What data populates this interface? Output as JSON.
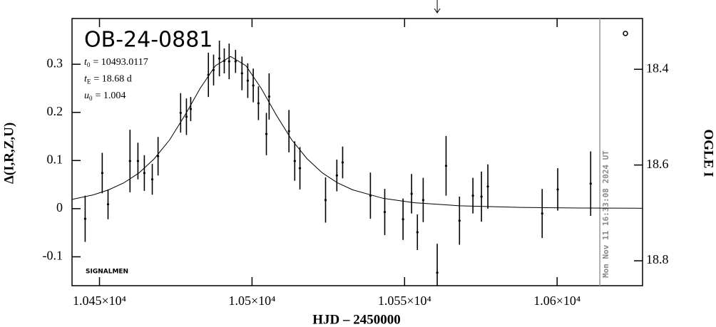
{
  "chart_data": {
    "type": "scatter",
    "title": "OB-24-0881",
    "xlabel": "HJD – 2450000",
    "ylabel": "Δ(I,R,Z,U)",
    "y2label": "OGLE I",
    "annotations": [
      {
        "symbol": "t",
        "subscript": "0",
        "text": "= 10493.0117"
      },
      {
        "symbol": "t",
        "subscript": "E",
        "text": "= 18.68 d"
      },
      {
        "symbol": "u",
        "subscript": "0",
        "text": "= 1.004"
      }
    ],
    "credit": "SIGNALMEN",
    "timestamp": "Mon Nov 11 16:33:08 2024 UT",
    "xlim": [
      10441,
      10628
    ],
    "ylim": [
      -0.16,
      0.395
    ],
    "y2lim": [
      18.852,
      18.294
    ],
    "xticks": [
      {
        "value": 10450,
        "label": "1.045×10⁴"
      },
      {
        "value": 10500,
        "label": "1.05×10⁴"
      },
      {
        "value": 10550,
        "label": "1.055×10⁴"
      },
      {
        "value": 10600,
        "label": "1.06×10⁴"
      }
    ],
    "yticks": [
      -0.1,
      0,
      0.1,
      0.2,
      0.3
    ],
    "y2ticks": [
      18.4,
      18.6,
      18.8
    ],
    "vline_x": 10614,
    "arrow_x": 10560.7,
    "series": [
      {
        "name": "data",
        "color": "#000000",
        "x": [
          10445.3,
          10450.9,
          10452.8,
          10460.0,
          10462.6,
          10464.7,
          10467.3,
          10469.2,
          10476.6,
          10478.5,
          10479.9,
          10485.7,
          10487.4,
          10489.3,
          10490.9,
          10492.5,
          10494.6,
          10496.7,
          10498.6,
          10500.4,
          10502.1,
          10504.7,
          10505.6,
          10512.1,
          10514.0,
          10515.7,
          10524.1,
          10527.8,
          10529.7,
          10538.8,
          10543.5,
          10549.5,
          10552.3,
          10554.2,
          10556.1,
          10560.7,
          10563.6,
          10568.0,
          10572.4,
          10575.2,
          10577.3,
          10595.1,
          10600.2,
          10611.0
        ],
        "values": [
          -0.021,
          0.074,
          0.009,
          0.099,
          0.099,
          0.074,
          0.061,
          0.109,
          0.199,
          0.191,
          0.207,
          0.278,
          0.288,
          0.312,
          0.307,
          0.306,
          0.306,
          0.281,
          0.266,
          0.256,
          0.219,
          0.155,
          0.233,
          0.161,
          0.099,
          0.084,
          0.018,
          0.069,
          0.096,
          0.027,
          -0.007,
          -0.022,
          0.031,
          -0.049,
          0.018,
          -0.133,
          0.089,
          -0.025,
          0.027,
          0.025,
          0.046,
          -0.01,
          0.04,
          0.052
        ],
        "errors": [
          0.048,
          0.042,
          0.031,
          0.065,
          0.038,
          0.037,
          0.032,
          0.04,
          0.041,
          0.038,
          0.025,
          0.046,
          0.032,
          0.037,
          0.026,
          0.037,
          0.024,
          0.035,
          0.036,
          0.035,
          0.035,
          0.044,
          0.048,
          0.044,
          0.041,
          0.044,
          0.047,
          0.033,
          0.033,
          0.048,
          0.048,
          0.043,
          0.041,
          0.037,
          0.046,
          0.06,
          0.062,
          0.05,
          0.037,
          0.052,
          0.046,
          0.051,
          0.044,
          0.067
        ]
      },
      {
        "name": "model",
        "color": "#000000",
        "x": [
          10441,
          10448,
          10453,
          10458,
          10463,
          10468,
          10473,
          10478,
          10483,
          10488,
          10493,
          10498,
          10503,
          10508,
          10513,
          10518,
          10523,
          10528,
          10533,
          10543,
          10553,
          10568,
          10588,
          10608,
          10628
        ],
        "values": [
          0.0192,
          0.0287,
          0.0391,
          0.0537,
          0.0745,
          0.104,
          0.143,
          0.194,
          0.25,
          0.297,
          0.316,
          0.297,
          0.25,
          0.194,
          0.143,
          0.104,
          0.0745,
          0.0537,
          0.0391,
          0.0214,
          0.0124,
          0.006,
          0.0026,
          0.0014,
          0.0008
        ]
      }
    ]
  }
}
